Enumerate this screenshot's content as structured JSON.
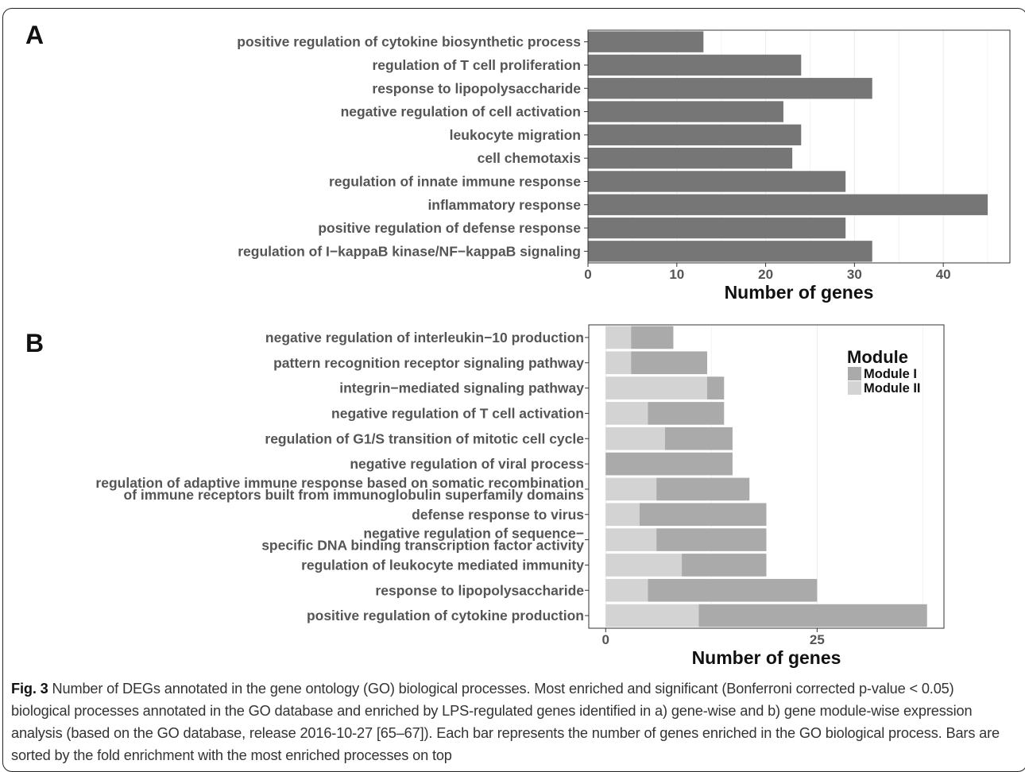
{
  "figure_label": "Fig. 3",
  "caption_text": " Number of DEGs annotated in the gene ontology (GO) biological processes. Most enriched and significant (Bonferroni corrected p-value < 0.05) biological processes annotated in the GO database and enriched by LPS-regulated genes identified in a) gene-wise and b) gene module-wise expression analysis (based on the GO database, release 2016-10-27 [65–67]). Each bar represents the number of genes enriched in the GO biological process. Bars are sorted by the fold enrichment with the most enriched processes on top",
  "panel_a_letter": "A",
  "panel_b_letter": "B",
  "colors": {
    "bar_a": "#767676",
    "module_i": "#aaaaaa",
    "module_ii": "#d3d3d3",
    "label": "#555555"
  },
  "chart_data": [
    {
      "type": "bar",
      "orientation": "horizontal",
      "panel": "A",
      "categories": [
        "positive regulation of cytokine biosynthetic process",
        "regulation of T cell proliferation",
        "response to lipopolysaccharide",
        "negative regulation of cell activation",
        "leukocyte migration",
        "cell chemotaxis",
        "regulation of innate immune response",
        "inflammatory response",
        "positive regulation of defense response",
        "regulation of I−kappaB kinase/NF−kappaB signaling"
      ],
      "values": [
        13,
        24,
        32,
        22,
        24,
        23,
        29,
        45,
        29,
        32
      ],
      "xlabel": "Number of genes",
      "xlim": [
        0,
        47.5
      ],
      "xticks": [
        0,
        10,
        20,
        30,
        40
      ],
      "grid": true
    },
    {
      "type": "bar",
      "orientation": "horizontal",
      "stacked": true,
      "panel": "B",
      "categories": [
        [
          "negative regulation of interleukin−10 production"
        ],
        [
          "pattern recognition receptor signaling pathway"
        ],
        [
          "integrin−mediated signaling pathway"
        ],
        [
          "negative regulation of T cell activation"
        ],
        [
          "regulation of G1/S transition of mitotic cell cycle"
        ],
        [
          "negative regulation of viral process"
        ],
        [
          "regulation of adaptive immune response based on somatic recombination",
          "of immune receptors built from immunoglobulin superfamily domains"
        ],
        [
          "defense response to virus"
        ],
        [
          "negative regulation of sequence−",
          "specific DNA binding transcription factor activity"
        ],
        [
          "regulation of leukocyte mediated immunity"
        ],
        [
          "response to lipopolysaccharide"
        ],
        [
          "positive regulation of cytokine production"
        ]
      ],
      "series": [
        {
          "name": "Module II",
          "values": [
            3,
            3,
            12,
            5,
            7,
            0,
            6,
            4,
            6,
            9,
            5,
            11
          ]
        },
        {
          "name": "Module I",
          "values": [
            5,
            9,
            2,
            9,
            8,
            15,
            11,
            15,
            13,
            10,
            20,
            27
          ]
        }
      ],
      "xlabel": "Number of genes",
      "xlim": [
        -2,
        40
      ],
      "xticks": [
        0,
        25
      ],
      "grid": true,
      "legend_title": "Module",
      "legend_entries": [
        "Module I",
        "Module II"
      ],
      "legend_position": "top-right"
    }
  ]
}
